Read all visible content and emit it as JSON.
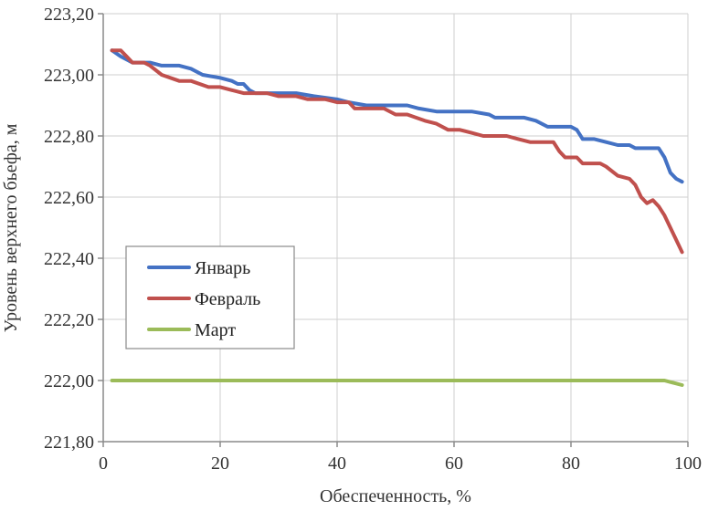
{
  "chart_data": {
    "type": "line",
    "title": "",
    "xlabel": "Обеспеченность, %",
    "ylabel": "Уровень верхнего бьефа, м",
    "xlim": [
      0,
      100
    ],
    "ylim": [
      221.8,
      223.2
    ],
    "x_ticks": [
      {
        "value": 0,
        "label": "0"
      },
      {
        "value": 20,
        "label": "20"
      },
      {
        "value": 40,
        "label": "40"
      },
      {
        "value": 60,
        "label": "60"
      },
      {
        "value": 80,
        "label": "80"
      },
      {
        "value": 100,
        "label": "100"
      }
    ],
    "y_ticks": [
      {
        "value": 221.8,
        "label": "221,80"
      },
      {
        "value": 222.0,
        "label": "222,00"
      },
      {
        "value": 222.2,
        "label": "222,20"
      },
      {
        "value": 222.4,
        "label": "222,40"
      },
      {
        "value": 222.6,
        "label": "222,60"
      },
      {
        "value": 222.8,
        "label": "222,80"
      },
      {
        "value": 223.0,
        "label": "223,00"
      },
      {
        "value": 223.2,
        "label": "223,20"
      }
    ],
    "grid": true,
    "legend_position": "left-middle",
    "series": [
      {
        "name": "Январь",
        "color": "#4472c4",
        "points": [
          [
            1.5,
            223.08
          ],
          [
            3,
            223.06
          ],
          [
            4,
            223.05
          ],
          [
            5,
            223.04
          ],
          [
            8,
            223.04
          ],
          [
            10,
            223.03
          ],
          [
            13,
            223.03
          ],
          [
            15,
            223.02
          ],
          [
            17,
            223.0
          ],
          [
            20,
            222.99
          ],
          [
            22,
            222.98
          ],
          [
            23,
            222.97
          ],
          [
            24,
            222.97
          ],
          [
            25,
            222.95
          ],
          [
            26,
            222.94
          ],
          [
            30,
            222.94
          ],
          [
            33,
            222.94
          ],
          [
            36,
            222.93
          ],
          [
            40,
            222.92
          ],
          [
            42,
            222.91
          ],
          [
            45,
            222.9
          ],
          [
            48,
            222.9
          ],
          [
            52,
            222.9
          ],
          [
            54,
            222.89
          ],
          [
            57,
            222.88
          ],
          [
            60,
            222.88
          ],
          [
            63,
            222.88
          ],
          [
            66,
            222.87
          ],
          [
            67,
            222.86
          ],
          [
            72,
            222.86
          ],
          [
            74,
            222.85
          ],
          [
            76,
            222.83
          ],
          [
            78,
            222.83
          ],
          [
            80,
            222.83
          ],
          [
            81,
            222.82
          ],
          [
            82,
            222.79
          ],
          [
            84,
            222.79
          ],
          [
            86,
            222.78
          ],
          [
            88,
            222.77
          ],
          [
            90,
            222.77
          ],
          [
            91,
            222.76
          ],
          [
            95,
            222.76
          ],
          [
            96,
            222.73
          ],
          [
            97,
            222.68
          ],
          [
            98,
            222.66
          ],
          [
            99,
            222.65
          ]
        ]
      },
      {
        "name": "Февраль",
        "color": "#c0504d",
        "points": [
          [
            1.5,
            223.08
          ],
          [
            3,
            223.08
          ],
          [
            4,
            223.06
          ],
          [
            5,
            223.04
          ],
          [
            7,
            223.04
          ],
          [
            8,
            223.03
          ],
          [
            10,
            223.0
          ],
          [
            13,
            222.98
          ],
          [
            15,
            222.98
          ],
          [
            18,
            222.96
          ],
          [
            20,
            222.96
          ],
          [
            22,
            222.95
          ],
          [
            24,
            222.94
          ],
          [
            28,
            222.94
          ],
          [
            30,
            222.93
          ],
          [
            33,
            222.93
          ],
          [
            35,
            222.92
          ],
          [
            38,
            222.92
          ],
          [
            40,
            222.91
          ],
          [
            42,
            222.91
          ],
          [
            43,
            222.89
          ],
          [
            46,
            222.89
          ],
          [
            48,
            222.89
          ],
          [
            50,
            222.87
          ],
          [
            52,
            222.87
          ],
          [
            55,
            222.85
          ],
          [
            57,
            222.84
          ],
          [
            59,
            222.82
          ],
          [
            61,
            222.82
          ],
          [
            63,
            222.81
          ],
          [
            65,
            222.8
          ],
          [
            69,
            222.8
          ],
          [
            71,
            222.79
          ],
          [
            73,
            222.78
          ],
          [
            75,
            222.78
          ],
          [
            77,
            222.78
          ],
          [
            78,
            222.75
          ],
          [
            79,
            222.73
          ],
          [
            81,
            222.73
          ],
          [
            82,
            222.71
          ],
          [
            85,
            222.71
          ],
          [
            86,
            222.7
          ],
          [
            88,
            222.67
          ],
          [
            90,
            222.66
          ],
          [
            91,
            222.64
          ],
          [
            92,
            222.6
          ],
          [
            93,
            222.58
          ],
          [
            94,
            222.59
          ],
          [
            95,
            222.57
          ],
          [
            96,
            222.54
          ],
          [
            97,
            222.5
          ],
          [
            98,
            222.46
          ],
          [
            99,
            222.42
          ]
        ]
      },
      {
        "name": "Март",
        "color": "#9bbb59",
        "points": [
          [
            1.5,
            222.0
          ],
          [
            20,
            222.0
          ],
          [
            40,
            222.0
          ],
          [
            60,
            222.0
          ],
          [
            80,
            222.0
          ],
          [
            96,
            222.0
          ],
          [
            97,
            221.995
          ],
          [
            98,
            221.99
          ],
          [
            99,
            221.985
          ]
        ]
      }
    ]
  }
}
